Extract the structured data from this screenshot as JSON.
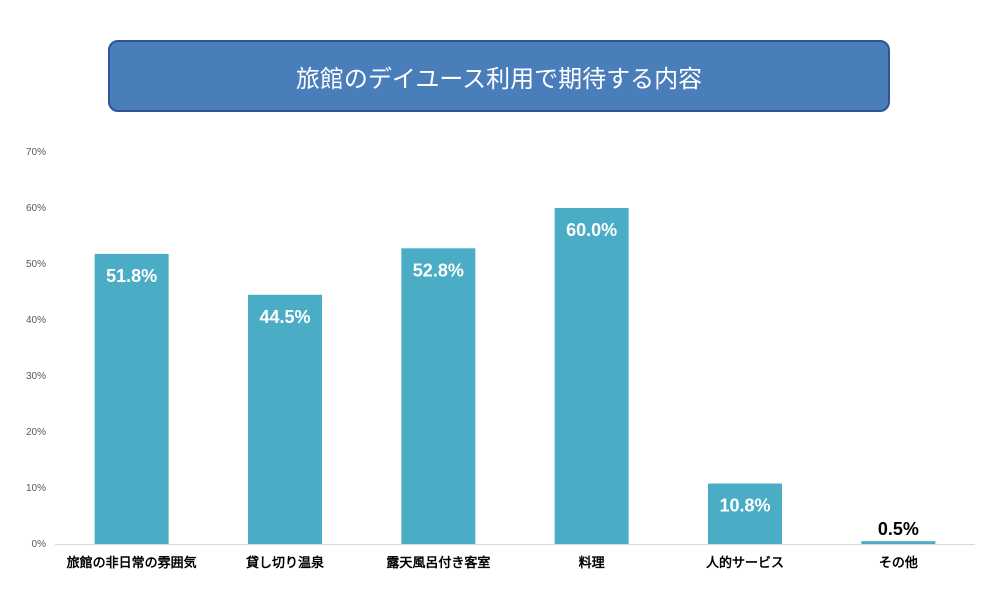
{
  "chart_data": {
    "type": "bar",
    "title": "旅館のデイユース利用で期待する内容",
    "categories": [
      "旅館の非日常の雰囲気",
      "貸し切り温泉",
      "露天風呂付き客室",
      "料理",
      "人的サービス",
      "その他"
    ],
    "values": [
      51.8,
      44.5,
      52.8,
      60.0,
      10.8,
      0.5
    ],
    "value_labels": [
      "51.8%",
      "44.5%",
      "52.8%",
      "60.0%",
      "10.8%",
      "0.5%"
    ],
    "yticks": [
      "0%",
      "10%",
      "20%",
      "30%",
      "40%",
      "50%",
      "60%",
      "70%"
    ],
    "ylim": [
      0,
      70
    ],
    "grid": false,
    "colors": {
      "bar": "#4bacc6",
      "label_inside": "#ffffff",
      "label_outside": "#000000",
      "title_bg": "#4a7ebb"
    }
  }
}
